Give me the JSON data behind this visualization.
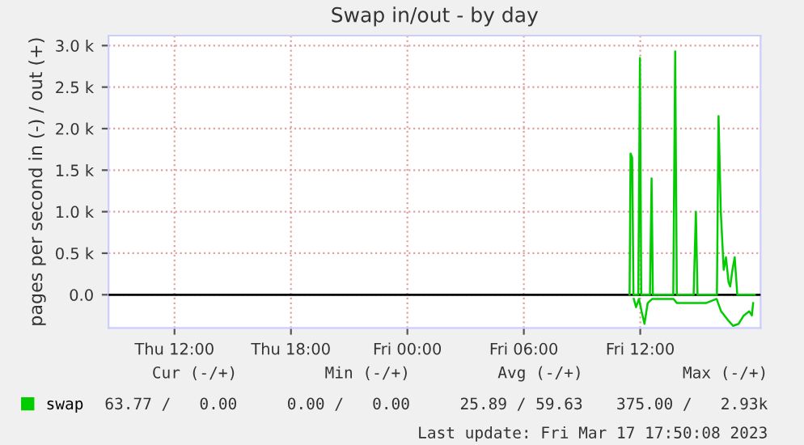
{
  "chart_data": {
    "type": "line",
    "title": "Swap in/out - by day",
    "ylabel": "pages per second in (-) / out (+)",
    "xlim": [
      "2023-03-16T08:36",
      "2023-03-17T18:12"
    ],
    "ylim": [
      -400,
      3120
    ],
    "xticks": [
      {
        "value": "2023-03-16T12:00",
        "label": "Thu 12:00"
      },
      {
        "value": "2023-03-16T18:00",
        "label": "Thu 18:00"
      },
      {
        "value": "2023-03-17T00:00",
        "label": "Fri 00:00"
      },
      {
        "value": "2023-03-17T06:00",
        "label": "Fri 06:00"
      },
      {
        "value": "2023-03-17T12:00",
        "label": "Fri 12:00"
      }
    ],
    "yticks": [
      {
        "value": 0,
        "label": "0.0"
      },
      {
        "value": 500,
        "label": "0.5 k"
      },
      {
        "value": 1000,
        "label": "1.0 k"
      },
      {
        "value": 1500,
        "label": "1.5 k"
      },
      {
        "value": 2000,
        "label": "2.0 k"
      },
      {
        "value": 2500,
        "label": "2.5 k"
      },
      {
        "value": 3000,
        "label": "3.0 k"
      }
    ],
    "series": [
      {
        "name": "swap",
        "color": "#00cc00",
        "x": [
          "2023-03-17T11:27",
          "2023-03-17T11:30",
          "2023-03-17T11:35",
          "2023-03-17T11:39",
          "2023-03-17T11:54",
          "2023-03-17T11:59",
          "2023-03-17T12:03",
          "2023-03-17T12:30",
          "2023-03-17T12:35",
          "2023-03-17T12:39",
          "2023-03-17T13:42",
          "2023-03-17T13:48",
          "2023-03-17T13:53",
          "2023-03-17T14:45",
          "2023-03-17T14:52",
          "2023-03-17T14:57",
          "2023-03-17T15:57",
          "2023-03-17T16:02",
          "2023-03-17T16:09",
          "2023-03-17T16:18",
          "2023-03-17T16:25",
          "2023-03-17T16:33",
          "2023-03-17T16:38",
          "2023-03-17T16:45",
          "2023-03-17T16:52",
          "2023-03-17T17:00",
          "2023-03-17T17:54"
        ],
        "values": [
          0,
          1700,
          1650,
          0,
          0,
          2850,
          0,
          0,
          1400,
          0,
          0,
          2930,
          0,
          0,
          1000,
          0,
          0,
          2150,
          1000,
          300,
          450,
          150,
          100,
          300,
          450,
          0,
          0
        ]
      },
      {
        "color": "#00cc00",
        "x": [
          "2023-03-17T11:40",
          "2023-03-17T11:47",
          "2023-03-17T11:56",
          "2023-03-17T12:04",
          "2023-03-17T12:13",
          "2023-03-17T12:23",
          "2023-03-17T12:37",
          "2023-03-17T13:10",
          "2023-03-17T13:43",
          "2023-03-17T13:53",
          "2023-03-17T14:08",
          "2023-03-17T14:25",
          "2023-03-17T14:41",
          "2023-03-17T15:23",
          "2023-03-17T15:56",
          "2023-03-17T16:10",
          "2023-03-17T16:30",
          "2023-03-17T16:47",
          "2023-03-17T17:04",
          "2023-03-17T17:20",
          "2023-03-17T17:37",
          "2023-03-17T17:45",
          "2023-03-17T17:49"
        ],
        "values": [
          -50,
          -150,
          -50,
          -200,
          -350,
          -100,
          -50,
          -50,
          -50,
          -100,
          -100,
          -100,
          -100,
          -100,
          -50,
          -200,
          -300,
          -375,
          -350,
          -250,
          -200,
          -250,
          -100
        ]
      }
    ],
    "ref_lines": [
      {
        "axis": "y",
        "value": 0,
        "color": "#000000"
      }
    ],
    "grid": true,
    "legend": "bottom left",
    "line_style": "solid",
    "annotations": [
      "Cur (-/+)",
      "Min (-/+)",
      "Avg (-/+)",
      "Max (-/+)",
      "63.77 /   0.00",
      "0.00 /   0.00",
      "25.89 / 59.63",
      "375.00 /   2.93k",
      "Last update: Fri Mar 17 17:50:08 2023"
    ]
  }
}
